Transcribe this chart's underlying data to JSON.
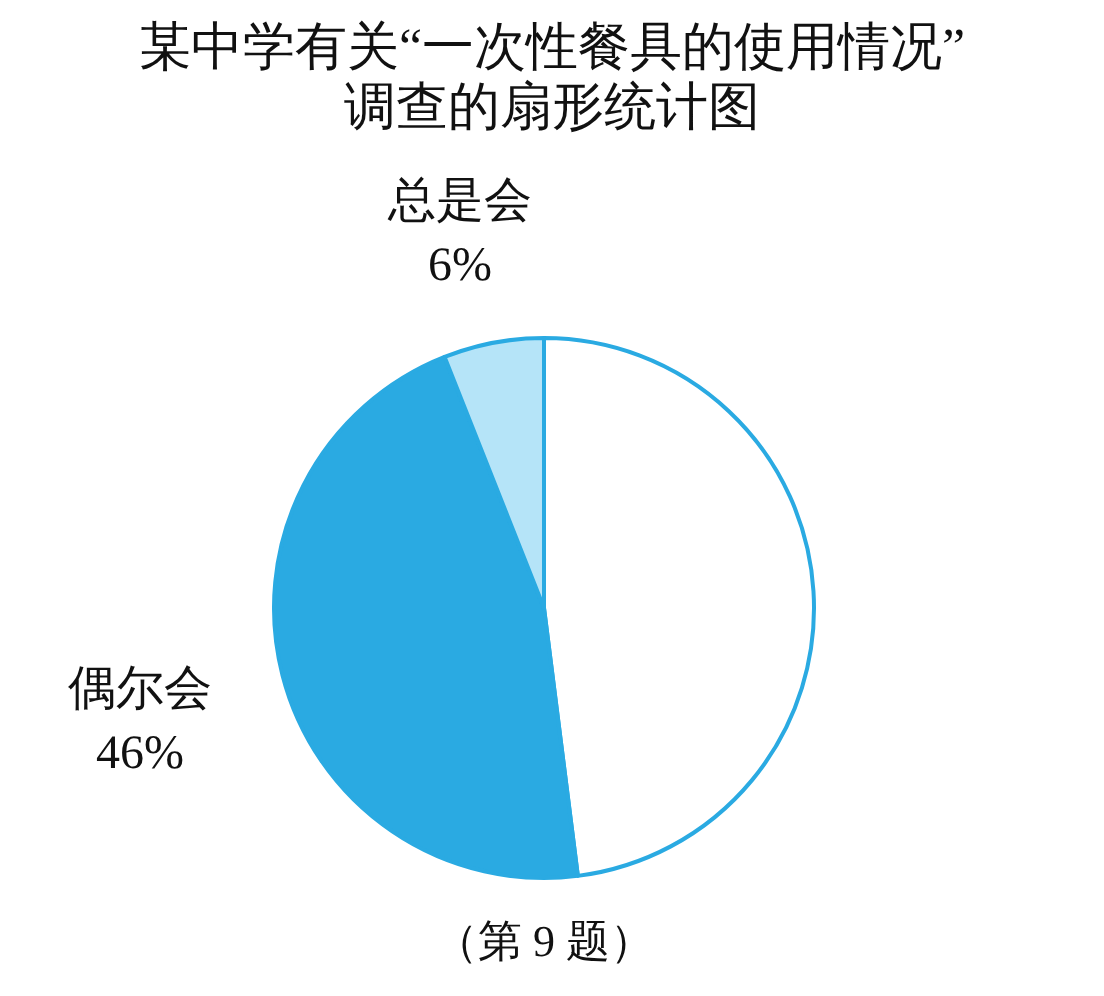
{
  "chart_data": {
    "type": "pie",
    "title": "某中学有关“一次性餐具的使用情况”\n调查的扇形统计图",
    "categories": [
      null,
      "偶尔会",
      "总是会"
    ],
    "values": [
      48,
      46,
      6
    ],
    "colors": [
      "#ffffff",
      "#2aaae2",
      "#b5e4f8"
    ],
    "value_labels": [
      null,
      "46%",
      "6%"
    ],
    "annotations": [
      "（第 9 题）"
    ]
  }
}
